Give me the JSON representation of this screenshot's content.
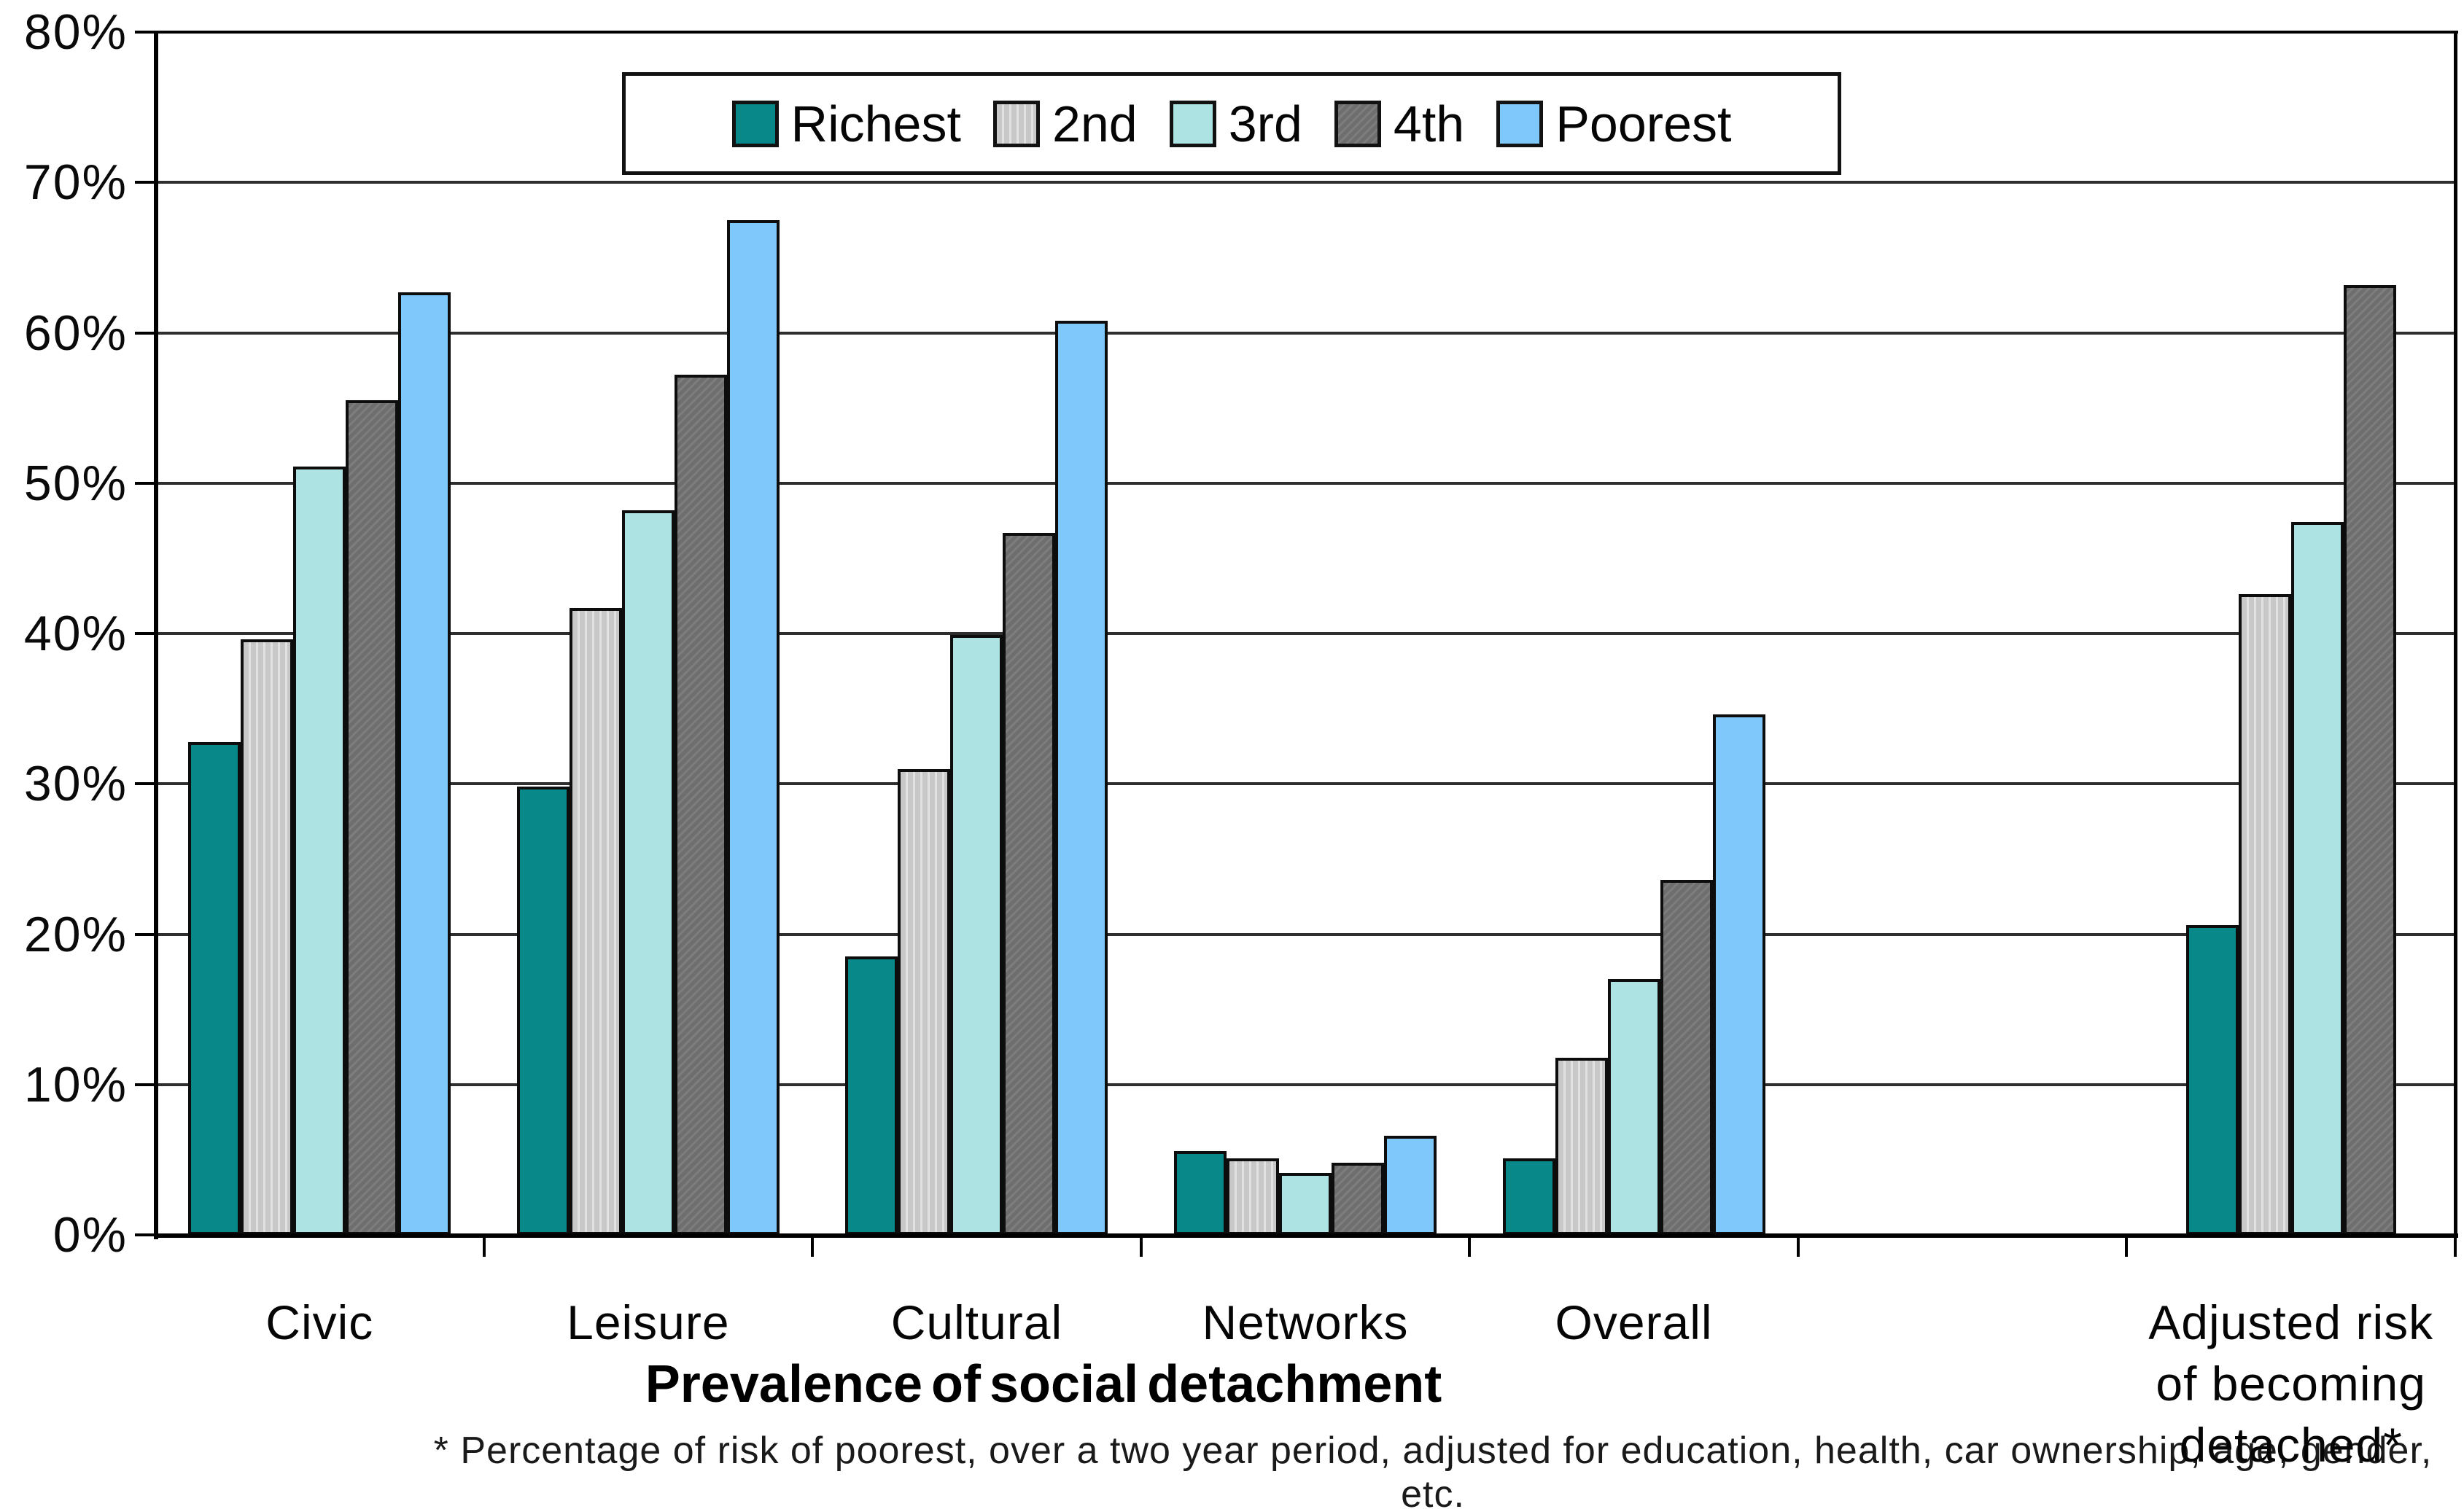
{
  "chart_data": {
    "type": "bar",
    "title": "Prevalence of social detachment",
    "footnote": "* Percentage of risk of poorest, over a two year period, adjusted for education, health, car ownership, age, gender, etc.",
    "ylabel": "",
    "xlabel": "Prevalence of social detachment",
    "ylim": [
      0,
      80
    ],
    "grid": true,
    "legend_position": "top-center",
    "yticks": [
      "80%",
      "70%",
      "60%",
      "50%",
      "40%",
      "30%",
      "20%",
      "10%",
      "0%"
    ],
    "categories": [
      {
        "label": "Civic",
        "lines": [
          "Civic"
        ]
      },
      {
        "label": "Leisure",
        "lines": [
          "Leisure"
        ]
      },
      {
        "label": "Cultural",
        "lines": [
          "Cultural"
        ]
      },
      {
        "label": "Networks",
        "lines": [
          "Networks"
        ]
      },
      {
        "label": "Overall",
        "lines": [
          "Overall"
        ]
      },
      {
        "label": "",
        "lines": []
      },
      {
        "label": "Adjusted risk of becoming detached*",
        "lines": [
          "Adjusted risk",
          "of becoming",
          "detached*"
        ]
      }
    ],
    "series": [
      {
        "name": "Richest",
        "color": "#088888",
        "pattern": "solid",
        "values": [
          32.8,
          29.8,
          18.5,
          5.6,
          5.1,
          null,
          20.6
        ]
      },
      {
        "name": "2nd",
        "color": "#C8C8C8",
        "pattern": "stripes",
        "values": [
          39.6,
          41.7,
          31.0,
          5.1,
          11.8,
          null,
          42.6
        ]
      },
      {
        "name": "3rd",
        "color": "#AEE3E3",
        "pattern": "solid",
        "values": [
          51.1,
          48.2,
          39.9,
          4.1,
          17.0,
          null,
          47.4
        ]
      },
      {
        "name": "4th",
        "color": "#6E6E6E",
        "pattern": "dither",
        "values": [
          55.5,
          57.2,
          46.7,
          4.8,
          23.6,
          null,
          63.2
        ]
      },
      {
        "name": "Poorest",
        "color": "#7EC8FC",
        "pattern": "solid",
        "values": [
          62.7,
          67.5,
          60.8,
          6.6,
          34.6,
          null,
          null
        ]
      }
    ]
  }
}
